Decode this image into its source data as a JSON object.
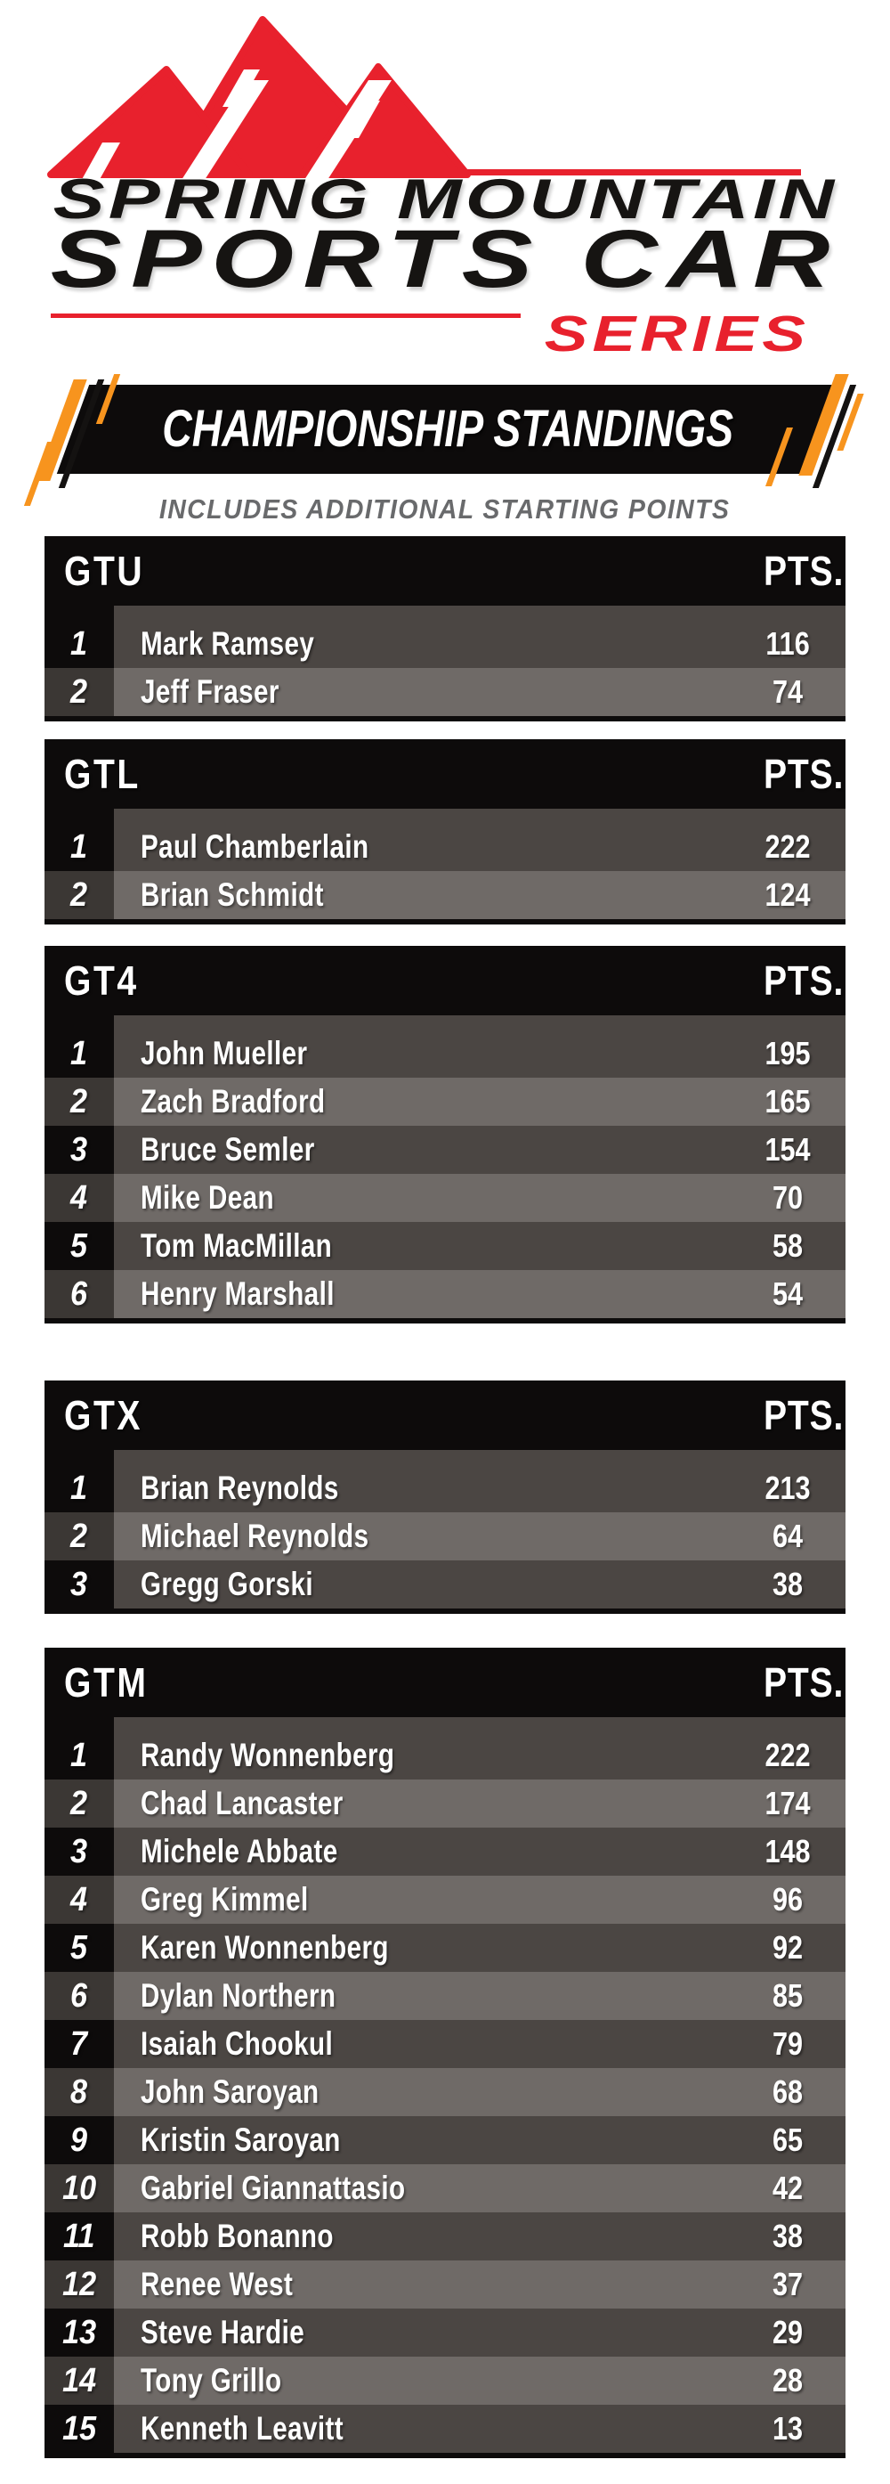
{
  "logo": {
    "line1": "SPRING MOUNTAIN",
    "line2": "SPORTS CAR",
    "line3": "SERIES",
    "mountain_icon": "red-mountain-peaks",
    "red": "#E8212D"
  },
  "banner": {
    "title": "CHAMPIONSHIP STANDINGS",
    "subtitle": "INCLUDES ADDITIONAL STARTING POINTS",
    "bg": "#0D0B0B",
    "orange": "#F7941E",
    "subtitle_color": "#696A6C"
  },
  "standings": {
    "points_header": "PTS.",
    "colors": {
      "header_bg": "#0D0B0B",
      "pos_odd": "#0D0B0B",
      "pos_even": "#3B3734",
      "row_odd": "#4B4643",
      "row_even": "#6F6A67"
    },
    "tables": [
      {
        "class_name": "GTU",
        "rows": [
          {
            "pos": "1",
            "name": "Mark Ramsey",
            "pts": "116"
          },
          {
            "pos": "2",
            "name": "Jeff Fraser",
            "pts": "74"
          }
        ]
      },
      {
        "class_name": "GTL",
        "rows": [
          {
            "pos": "1",
            "name": "Paul Chamberlain",
            "pts": "222"
          },
          {
            "pos": "2",
            "name": "Brian Schmidt",
            "pts": "124"
          }
        ]
      },
      {
        "class_name": "GT4",
        "rows": [
          {
            "pos": "1",
            "name": "John Mueller",
            "pts": "195"
          },
          {
            "pos": "2",
            "name": "Zach Bradford",
            "pts": "165"
          },
          {
            "pos": "3",
            "name": "Bruce Semler",
            "pts": "154"
          },
          {
            "pos": "4",
            "name": "Mike Dean",
            "pts": "70"
          },
          {
            "pos": "5",
            "name": "Tom MacMillan",
            "pts": "58"
          },
          {
            "pos": "6",
            "name": "Henry Marshall",
            "pts": "54"
          }
        ]
      },
      {
        "class_name": "GTX",
        "rows": [
          {
            "pos": "1",
            "name": "Brian Reynolds",
            "pts": "213"
          },
          {
            "pos": "2",
            "name": "Michael Reynolds",
            "pts": "64"
          },
          {
            "pos": "3",
            "name": "Gregg Gorski",
            "pts": "38"
          }
        ]
      },
      {
        "class_name": "GTM",
        "rows": [
          {
            "pos": "1",
            "name": "Randy Wonnenberg",
            "pts": "222"
          },
          {
            "pos": "2",
            "name": "Chad Lancaster",
            "pts": "174"
          },
          {
            "pos": "3",
            "name": "Michele Abbate",
            "pts": "148"
          },
          {
            "pos": "4",
            "name": "Greg Kimmel",
            "pts": "96"
          },
          {
            "pos": "5",
            "name": "Karen Wonnenberg",
            "pts": "92"
          },
          {
            "pos": "6",
            "name": "Dylan Northern",
            "pts": "85"
          },
          {
            "pos": "7",
            "name": "Isaiah Chookul",
            "pts": "79"
          },
          {
            "pos": "8",
            "name": "John Saroyan",
            "pts": "68"
          },
          {
            "pos": "9",
            "name": "Kristin Saroyan",
            "pts": "65"
          },
          {
            "pos": "10",
            "name": "Gabriel Giannattasio",
            "pts": "42"
          },
          {
            "pos": "11",
            "name": "Robb Bonanno",
            "pts": "38"
          },
          {
            "pos": "12",
            "name": "Renee West",
            "pts": "37"
          },
          {
            "pos": "13",
            "name": "Steve Hardie",
            "pts": "29"
          },
          {
            "pos": "14",
            "name": "Tony Grillo",
            "pts": "28"
          },
          {
            "pos": "15",
            "name": "Kenneth Leavitt",
            "pts": "13"
          }
        ]
      }
    ]
  }
}
